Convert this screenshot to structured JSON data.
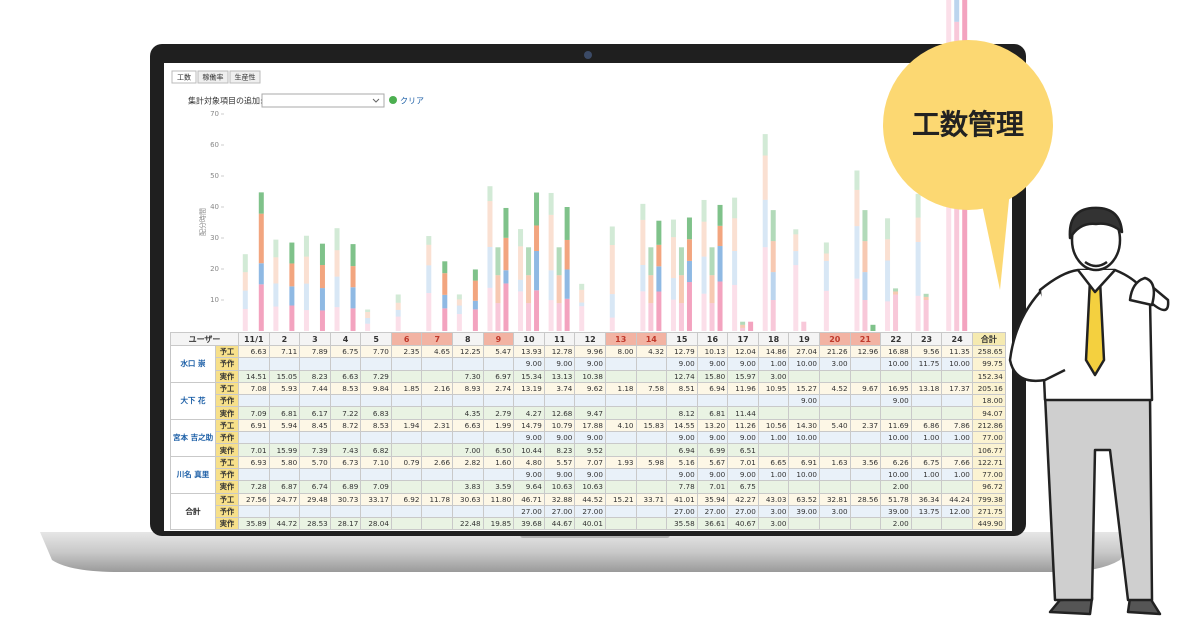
{
  "tabs": [
    "工数",
    "稼働率",
    "生産性"
  ],
  "filter": {
    "label": "集計対象項目の追加:",
    "clear": "クリア"
  },
  "chart": {
    "ylabel": "配分時間",
    "ylim": [
      0,
      70
    ],
    "yticks": [
      10,
      20,
      30,
      40,
      50,
      60,
      70
    ],
    "colors": [
      "#f3a3bf",
      "#8fb9e3",
      "#f2a57f",
      "#7fc28a"
    ]
  },
  "table": {
    "header": [
      "ユーザー",
      "11/1",
      "2",
      "3",
      "4",
      "5",
      "6",
      "7",
      "8",
      "9",
      "10",
      "11",
      "12",
      "13",
      "14",
      "15",
      "16",
      "17",
      "18",
      "19",
      "20",
      "21",
      "22",
      "23",
      "24",
      "合計"
    ],
    "row_types": [
      "予工",
      "予作",
      "実作"
    ],
    "users": [
      {
        "name": "水口 崇",
        "rows": [
          [
            "6.63",
            "7.11",
            "7.89",
            "6.75",
            "7.70",
            "2.35",
            "4.65",
            "12.25",
            "5.47",
            "13.93",
            "12.78",
            "9.96",
            "8.00",
            "4.32",
            "12.79",
            "10.13",
            "12.04",
            "14.86",
            "27.04",
            "21.26",
            "12.96",
            "16.88",
            "9.56",
            "11.35",
            "258.65"
          ],
          [
            null,
            null,
            null,
            null,
            null,
            null,
            null,
            null,
            null,
            "9.00",
            "9.00",
            "9.00",
            null,
            null,
            "9.00",
            "9.00",
            "9.00",
            "1.00",
            "10.00",
            "3.00",
            null,
            "10.00",
            "11.75",
            "10.00",
            "99.75"
          ],
          [
            "14.51",
            "15.05",
            "8.23",
            "6.63",
            "7.29",
            null,
            null,
            "7.30",
            "6.97",
            "15.34",
            "13.13",
            "10.38",
            null,
            null,
            "12.74",
            "15.80",
            "15.97",
            "3.00",
            null,
            null,
            null,
            null,
            null,
            null,
            "152.34"
          ]
        ]
      },
      {
        "name": "大下 花",
        "rows": [
          [
            "7.08",
            "5.93",
            "7.44",
            "8.53",
            "9.84",
            "1.85",
            "2.16",
            "8.93",
            "2.74",
            "13.19",
            "3.74",
            "9.62",
            "1.18",
            "7.58",
            "8.51",
            "6.94",
            "11.96",
            "10.95",
            "15.27",
            "4.52",
            "9.67",
            "16.95",
            "13.18",
            "17.37",
            "205.16"
          ],
          [
            null,
            null,
            null,
            null,
            null,
            null,
            null,
            null,
            null,
            null,
            null,
            null,
            null,
            null,
            null,
            null,
            null,
            null,
            "9.00",
            null,
            null,
            "9.00",
            null,
            null,
            "18.00"
          ],
          [
            "7.09",
            "6.81",
            "6.17",
            "7.22",
            "6.83",
            null,
            null,
            "4.35",
            "2.79",
            "4.27",
            "12.68",
            "9.47",
            null,
            null,
            "8.12",
            "6.81",
            "11.44",
            null,
            null,
            null,
            null,
            null,
            null,
            null,
            "94.07"
          ]
        ]
      },
      {
        "name": "宮本 吉之助",
        "rows": [
          [
            "6.91",
            "5.94",
            "8.45",
            "8.72",
            "8.53",
            "1.94",
            "2.31",
            "6.63",
            "1.99",
            "14.79",
            "10.79",
            "17.88",
            "4.10",
            "15.83",
            "14.55",
            "13.20",
            "11.26",
            "10.56",
            "14.30",
            "5.40",
            "2.37",
            "11.69",
            "6.86",
            "7.86",
            "212.86"
          ],
          [
            null,
            null,
            null,
            null,
            null,
            null,
            null,
            null,
            null,
            "9.00",
            "9.00",
            "9.00",
            null,
            null,
            "9.00",
            "9.00",
            "9.00",
            "1.00",
            "10.00",
            null,
            null,
            "10.00",
            "1.00",
            "1.00",
            "77.00"
          ],
          [
            "7.01",
            "15.99",
            "7.39",
            "7.43",
            "6.82",
            null,
            null,
            "7.00",
            "6.50",
            "10.44",
            "8.23",
            "9.52",
            null,
            null,
            "6.94",
            "6.99",
            "6.51",
            null,
            null,
            null,
            null,
            null,
            null,
            null,
            "106.77"
          ]
        ]
      },
      {
        "name": "川名 真里",
        "rows": [
          [
            "6.93",
            "5.80",
            "5.70",
            "6.73",
            "7.10",
            "0.79",
            "2.66",
            "2.82",
            "1.60",
            "4.80",
            "5.57",
            "7.07",
            "1.93",
            "5.98",
            "5.16",
            "5.67",
            "7.01",
            "6.65",
            "6.91",
            "1.63",
            "3.56",
            "6.26",
            "6.75",
            "7.66",
            "122.71"
          ],
          [
            null,
            null,
            null,
            null,
            null,
            null,
            null,
            null,
            null,
            "9.00",
            "9.00",
            "9.00",
            null,
            null,
            "9.00",
            "9.00",
            "9.00",
            "1.00",
            "10.00",
            null,
            null,
            "10.00",
            "1.00",
            "1.00",
            "77.00"
          ],
          [
            "7.28",
            "6.87",
            "6.74",
            "6.89",
            "7.09",
            null,
            null,
            "3.83",
            "3.59",
            "9.64",
            "10.63",
            "10.63",
            null,
            null,
            "7.78",
            "7.01",
            "6.75",
            null,
            null,
            null,
            null,
            "2.00",
            null,
            null,
            "96.72"
          ]
        ]
      }
    ],
    "total": {
      "name": "合計",
      "rows": [
        [
          "27.56",
          "24.77",
          "29.48",
          "30.73",
          "33.17",
          "6.92",
          "11.78",
          "30.63",
          "11.80",
          "46.71",
          "32.88",
          "44.52",
          "15.21",
          "33.71",
          "41.01",
          "35.94",
          "42.27",
          "43.03",
          "63.52",
          "32.81",
          "28.56",
          "51.78",
          "36.34",
          "44.24",
          "799.38"
        ],
        [
          null,
          null,
          null,
          null,
          null,
          null,
          null,
          null,
          null,
          "27.00",
          "27.00",
          "27.00",
          null,
          null,
          "27.00",
          "27.00",
          "27.00",
          "3.00",
          "39.00",
          "3.00",
          null,
          "39.00",
          "13.75",
          "12.00",
          "271.75"
        ],
        [
          "35.89",
          "44.72",
          "28.53",
          "28.17",
          "28.04",
          null,
          null,
          "22.48",
          "19.85",
          "39.68",
          "44.67",
          "40.01",
          null,
          null,
          "35.58",
          "36.61",
          "40.67",
          "3.00",
          null,
          null,
          null,
          "2.00",
          null,
          null,
          "449.90"
        ]
      ]
    }
  },
  "bubble": "工数管理"
}
